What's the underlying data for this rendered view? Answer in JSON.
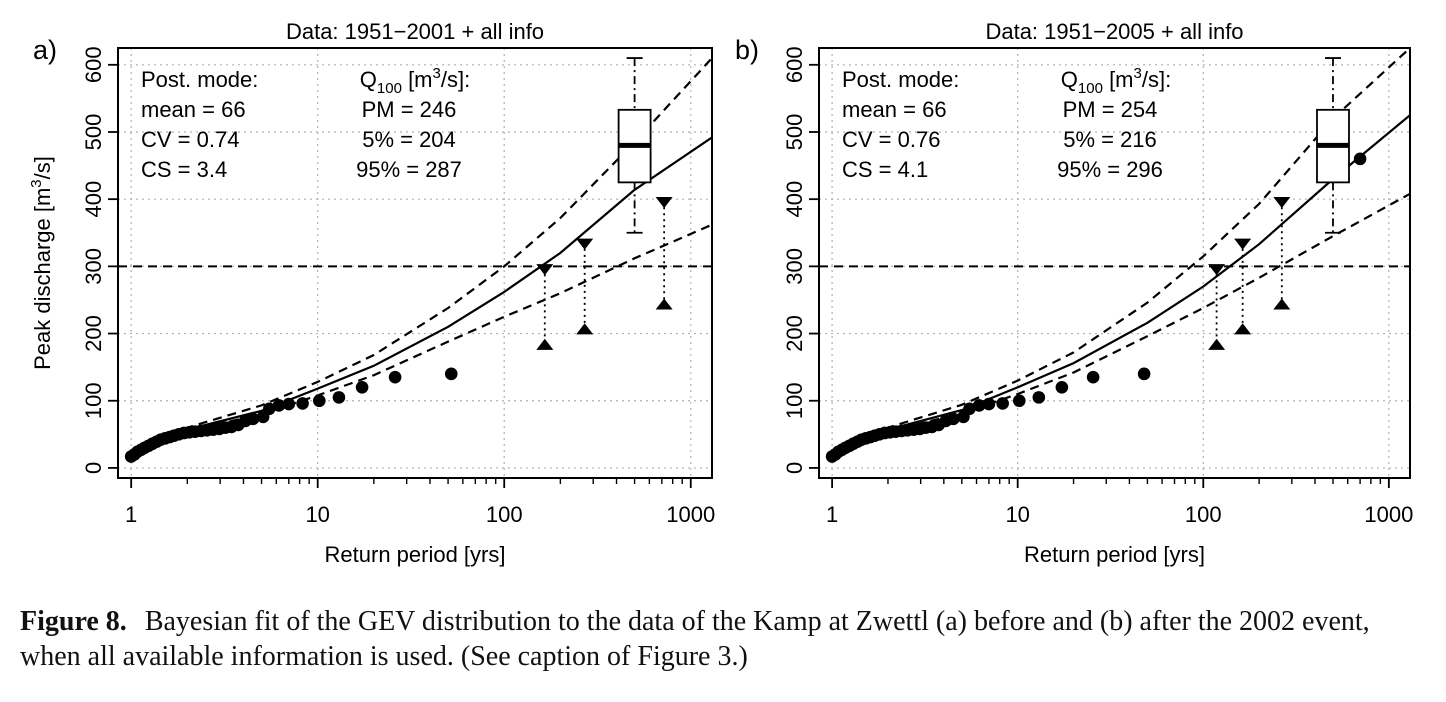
{
  "chart_data": [
    {
      "type": "scatter",
      "panel_label": "a)",
      "title": "Data: 1951−2001 + all info",
      "xlabel": "Return period [yrs]",
      "ylabel": "Peak discharge [m³/s]",
      "x_scale": "log",
      "xlim": [
        0.85,
        1300
      ],
      "ylim": [
        -15,
        625
      ],
      "x_ticks": [
        1,
        10,
        100,
        1000
      ],
      "x_tick_labels": [
        "1",
        "10",
        "100",
        "1000"
      ],
      "y_ticks": [
        0,
        100,
        200,
        300,
        400,
        500,
        600
      ],
      "y_tick_labels": [
        "0",
        "100",
        "200",
        "300",
        "400",
        "500",
        "600"
      ],
      "grid": true,
      "threshold_line": 300,
      "stats_left": [
        "Post. mode:",
        "mean = 66",
        "CV = 0.74",
        "CS = 3.4"
      ],
      "stats_right_header": "Q100 [m3/s]:",
      "stats_right": [
        "PM = 246",
        "5% = 204",
        "95% = 287"
      ],
      "series": [
        {
          "marker": "circle",
          "points": [
            [
              1.0,
              17
            ],
            [
              1.04,
              20
            ],
            [
              1.08,
              24
            ],
            [
              1.13,
              27
            ],
            [
              1.18,
              30
            ],
            [
              1.24,
              33
            ],
            [
              1.3,
              36
            ],
            [
              1.37,
              39
            ],
            [
              1.44,
              42
            ],
            [
              1.52,
              44
            ],
            [
              1.61,
              46
            ],
            [
              1.7,
              48
            ],
            [
              1.8,
              50
            ],
            [
              1.92,
              52
            ],
            [
              2.05,
              53
            ],
            [
              2.2,
              54
            ],
            [
              2.37,
              55
            ],
            [
              2.55,
              56
            ],
            [
              2.75,
              57
            ],
            [
              2.97,
              58
            ],
            [
              3.2,
              60
            ],
            [
              3.45,
              61
            ],
            [
              3.75,
              64
            ],
            [
              4.1,
              70
            ],
            [
              4.5,
              73
            ],
            [
              5.1,
              76
            ],
            [
              5.5,
              88
            ],
            [
              6.2,
              93
            ],
            [
              7.0,
              95
            ],
            [
              8.3,
              96
            ],
            [
              10.2,
              100
            ],
            [
              13.0,
              105
            ],
            [
              17.3,
              120
            ],
            [
              26.0,
              135
            ],
            [
              52.0,
              140
            ]
          ]
        },
        {
          "name": "upper bound",
          "marker": "triangle-down",
          "points": [
            [
              165,
              297
            ],
            [
              270,
              335
            ],
            [
              720,
              397
            ]
          ]
        },
        {
          "name": "lower bound",
          "marker": "triangle-up",
          "points": [
            [
              165,
              182
            ],
            [
              270,
              205
            ],
            [
              720,
              242
            ]
          ]
        },
        {
          "name": "fit",
          "style": "solid",
          "points": [
            [
              1.0,
              17
            ],
            [
              2,
              57
            ],
            [
              5,
              85
            ],
            [
              10,
              118
            ],
            [
              20,
              152
            ],
            [
              50,
              210
            ],
            [
              100,
              262
            ],
            [
              200,
              320
            ],
            [
              500,
              414
            ],
            [
              1300,
              492
            ]
          ]
        },
        {
          "name": "95% bound",
          "style": "dashed",
          "points": [
            [
              1.0,
              17
            ],
            [
              2,
              60
            ],
            [
              5,
              93
            ],
            [
              10,
              128
            ],
            [
              20,
              168
            ],
            [
              50,
              238
            ],
            [
              100,
              300
            ],
            [
              200,
              372
            ],
            [
              500,
              485
            ],
            [
              1300,
              610
            ]
          ]
        },
        {
          "name": "5% bound",
          "style": "dashed",
          "points": [
            [
              1.0,
              17
            ],
            [
              2,
              55
            ],
            [
              5,
              80
            ],
            [
              10,
              108
            ],
            [
              20,
              138
            ],
            [
              50,
              188
            ],
            [
              100,
              225
            ],
            [
              200,
              260
            ],
            [
              500,
              312
            ],
            [
              1300,
              362
            ]
          ]
        }
      ],
      "boxplot": {
        "x": 500,
        "whisker_low": 350,
        "q1": 425,
        "median": 480,
        "q3": 533,
        "whisker_high": 610
      }
    },
    {
      "type": "scatter",
      "panel_label": "b)",
      "title": "Data: 1951−2005 + all info",
      "xlabel": "Return period [yrs]",
      "ylabel": "",
      "x_scale": "log",
      "xlim": [
        0.85,
        1300
      ],
      "ylim": [
        -15,
        625
      ],
      "x_ticks": [
        1,
        10,
        100,
        1000
      ],
      "x_tick_labels": [
        "1",
        "10",
        "100",
        "1000"
      ],
      "y_ticks": [
        0,
        100,
        200,
        300,
        400,
        500,
        600
      ],
      "y_tick_labels": [
        "0",
        "100",
        "200",
        "300",
        "400",
        "500",
        "600"
      ],
      "grid": true,
      "threshold_line": 300,
      "stats_left": [
        "Post. mode:",
        "mean = 66",
        "CV = 0.76",
        "CS = 4.1"
      ],
      "stats_right_header": "Q100 [m3/s]:",
      "stats_right": [
        "PM = 254",
        "5% = 216",
        "95% = 296"
      ],
      "series": [
        {
          "marker": "circle",
          "points": [
            [
              1.0,
              17
            ],
            [
              1.04,
              20
            ],
            [
              1.08,
              24
            ],
            [
              1.13,
              27
            ],
            [
              1.18,
              30
            ],
            [
              1.24,
              33
            ],
            [
              1.3,
              36
            ],
            [
              1.37,
              39
            ],
            [
              1.44,
              42
            ],
            [
              1.52,
              44
            ],
            [
              1.61,
              46
            ],
            [
              1.7,
              48
            ],
            [
              1.8,
              50
            ],
            [
              1.92,
              52
            ],
            [
              2.05,
              53
            ],
            [
              2.2,
              54
            ],
            [
              2.37,
              55
            ],
            [
              2.55,
              56
            ],
            [
              2.75,
              57
            ],
            [
              2.97,
              58
            ],
            [
              3.2,
              60
            ],
            [
              3.45,
              61
            ],
            [
              3.75,
              64
            ],
            [
              4.1,
              70
            ],
            [
              4.5,
              73
            ],
            [
              5.1,
              76
            ],
            [
              5.5,
              88
            ],
            [
              6.2,
              93
            ],
            [
              7.0,
              95
            ],
            [
              8.3,
              96
            ],
            [
              10.2,
              100
            ],
            [
              13.0,
              105
            ],
            [
              17.3,
              120
            ],
            [
              25.5,
              135
            ],
            [
              48.0,
              140
            ],
            [
              700,
              460
            ]
          ]
        },
        {
          "name": "upper bound",
          "marker": "triangle-down",
          "points": [
            [
              118,
              297
            ],
            [
              163,
              335
            ],
            [
              265,
              397
            ]
          ]
        },
        {
          "name": "lower bound",
          "marker": "triangle-up",
          "points": [
            [
              118,
              182
            ],
            [
              163,
              205
            ],
            [
              265,
              242
            ]
          ]
        },
        {
          "name": "fit",
          "style": "solid",
          "points": [
            [
              1.0,
              17
            ],
            [
              2,
              57
            ],
            [
              5,
              86
            ],
            [
              10,
              120
            ],
            [
              20,
              156
            ],
            [
              50,
              216
            ],
            [
              100,
              270
            ],
            [
              200,
              333
            ],
            [
              500,
              430
            ],
            [
              1300,
              525
            ]
          ]
        },
        {
          "name": "95% bound",
          "style": "dashed",
          "points": [
            [
              1.0,
              17
            ],
            [
              2,
              60
            ],
            [
              5,
              94
            ],
            [
              10,
              130
            ],
            [
              20,
              172
            ],
            [
              50,
              246
            ],
            [
              100,
              315
            ],
            [
              200,
              393
            ],
            [
              500,
              520
            ],
            [
              1300,
              625
            ]
          ]
        },
        {
          "name": "5% bound",
          "style": "dashed",
          "points": [
            [
              1.0,
              17
            ],
            [
              2,
              55
            ],
            [
              5,
              81
            ],
            [
              10,
              110
            ],
            [
              20,
              142
            ],
            [
              50,
              196
            ],
            [
              100,
              238
            ],
            [
              200,
              283
            ],
            [
              500,
              345
            ],
            [
              1300,
              408
            ]
          ]
        }
      ],
      "boxplot": {
        "x": 500,
        "whisker_low": 350,
        "q1": 425,
        "median": 480,
        "q3": 533,
        "whisker_high": 610
      }
    }
  ],
  "caption": {
    "label": "Figure 8.",
    "text": "Bayesian fit of the GEV distribution to the data of the Kamp at Zwettl (a) before and (b) after the 2002 event, when all available information is used. (See caption of Figure 3.)"
  }
}
